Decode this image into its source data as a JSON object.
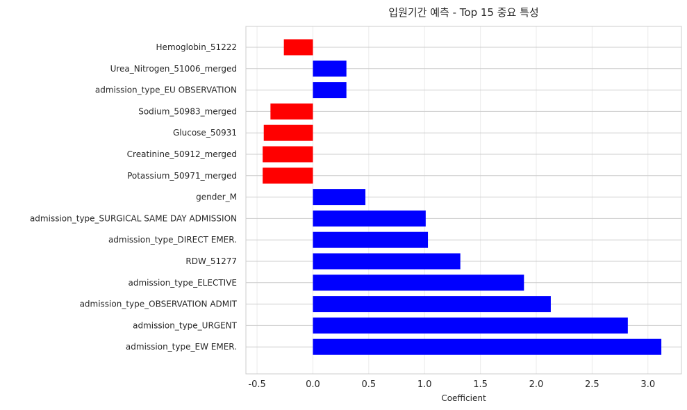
{
  "chart_data": {
    "type": "bar",
    "orientation": "horizontal",
    "title": "입원기간 예측 - Top 15 중요 특성",
    "xlabel": "Coefficient",
    "ylabel": "",
    "xlim": [
      -0.6,
      3.3
    ],
    "xticks": [
      -0.5,
      0.0,
      0.5,
      1.0,
      1.5,
      2.0,
      2.5,
      3.0
    ],
    "xtick_labels": [
      "-0.5",
      "0.0",
      "0.5",
      "1.0",
      "1.5",
      "2.0",
      "2.5",
      "3.0"
    ],
    "grid": true,
    "colors": {
      "positive": "#0000ff",
      "negative": "#ff0000"
    },
    "categories": [
      "Hemoglobin_51222",
      "Urea_Nitrogen_51006_merged",
      "admission_type_EU OBSERVATION",
      "Sodium_50983_merged",
      "Glucose_50931",
      "Creatinine_50912_merged",
      "Potassium_50971_merged",
      "gender_M",
      "admission_type_SURGICAL SAME DAY ADMISSION",
      "admission_type_DIRECT EMER.",
      "RDW_51277",
      "admission_type_ELECTIVE",
      "admission_type_OBSERVATION ADMIT",
      "admission_type_URGENT",
      "admission_type_EW EMER."
    ],
    "values": [
      -0.26,
      0.3,
      0.3,
      -0.38,
      -0.44,
      -0.45,
      -0.45,
      0.47,
      1.01,
      1.03,
      1.32,
      1.89,
      2.13,
      2.82,
      3.12
    ]
  }
}
